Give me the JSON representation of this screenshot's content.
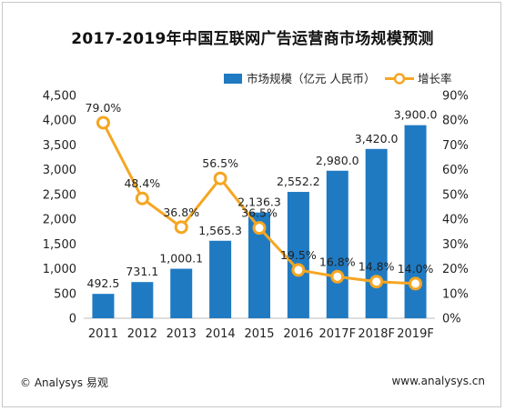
{
  "chart_data": {
    "type": "bar",
    "title": "2017-2019年中国互联网广告运营商市场规模预测",
    "categories": [
      "2011",
      "2012",
      "2013",
      "2014",
      "2015",
      "2016",
      "2017F",
      "2018F",
      "2019F"
    ],
    "series": [
      {
        "name": "市场规模（亿元 人民币）",
        "type": "bar",
        "axis": "left",
        "values": [
          492.5,
          731.1,
          1000.1,
          1565.3,
          2136.3,
          2552.2,
          2980.0,
          3420.0,
          3900.0
        ],
        "labels": [
          "492.5",
          "731.1",
          "1,000.1",
          "1,565.3",
          "2,136.3",
          "2,552.2",
          "2,980.0",
          "3,420.0",
          "3,900.0"
        ],
        "color": "#1f7ac2"
      },
      {
        "name": "增长率",
        "type": "line",
        "axis": "right",
        "values": [
          79.0,
          48.4,
          36.8,
          56.5,
          36.5,
          19.5,
          16.8,
          14.8,
          14.0
        ],
        "labels": [
          "79.0%",
          "48.4%",
          "36.8%",
          "56.5%",
          "36.5%",
          "19.5%",
          "16.8%",
          "14.8%",
          "14.0%"
        ],
        "color": "#f5a623"
      }
    ],
    "left_axis": {
      "ylim": [
        0,
        4500
      ],
      "ticks": [
        "0",
        "500",
        "1,000",
        "1,500",
        "2,000",
        "2,500",
        "3,000",
        "3,500",
        "4,000",
        "4,500"
      ]
    },
    "right_axis": {
      "ylim": [
        0,
        90
      ],
      "ticks": [
        "0%",
        "10%",
        "20%",
        "30%",
        "40%",
        "50%",
        "60%",
        "70%",
        "80%",
        "90%"
      ]
    },
    "legend_position": "top-right",
    "grid": false
  },
  "footer": {
    "left": "© Analysys 易观",
    "right": "www.analysys.cn"
  }
}
